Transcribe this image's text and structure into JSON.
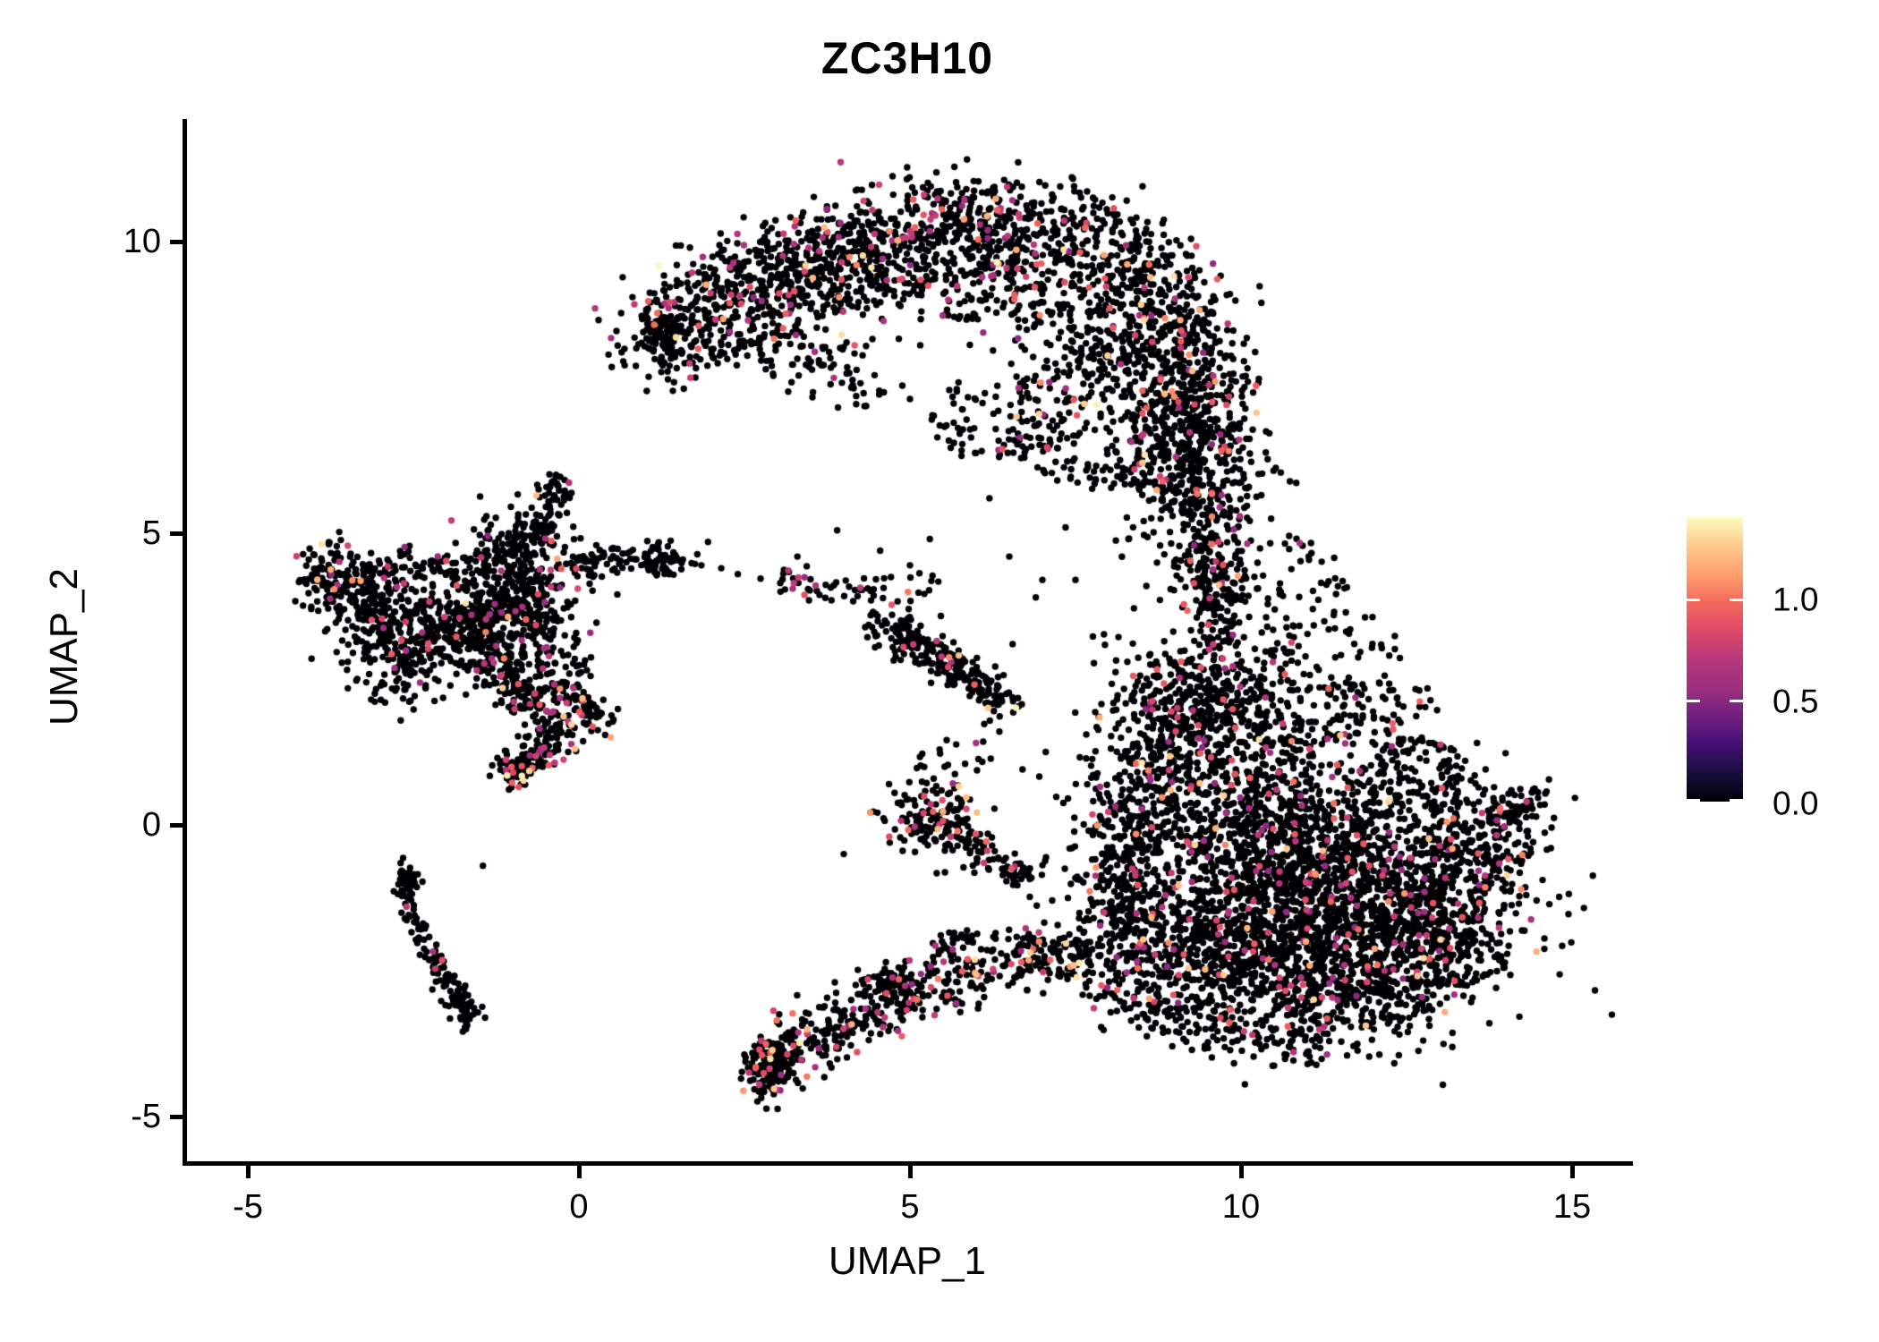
{
  "title": "ZC3H10",
  "axes": {
    "x_label": "UMAP_1",
    "y_label": "UMAP_2",
    "x_ticks": [
      "-5",
      "0",
      "5",
      "10",
      "15"
    ],
    "x_tick_values": [
      -5,
      0,
      5,
      10,
      15
    ],
    "y_ticks": [
      "10",
      "5",
      "0",
      "-5"
    ],
    "y_tick_values": [
      10,
      5,
      0,
      -5
    ]
  },
  "legend": {
    "entries": [
      {
        "label": "1.0",
        "value": 1.0
      },
      {
        "label": "0.5",
        "value": 0.5
      },
      {
        "label": "0.0",
        "value": 0.0
      }
    ],
    "vmin": 0.0,
    "vmax": 1.4
  },
  "colors": {
    "background": "#ffffff",
    "axis": "#000000",
    "point_zero": "#000004",
    "magma": [
      [
        0.0,
        "#000004"
      ],
      [
        0.1,
        "#180f3d"
      ],
      [
        0.2,
        "#440f76"
      ],
      [
        0.3,
        "#721f81"
      ],
      [
        0.4,
        "#9e2f7f"
      ],
      [
        0.5,
        "#b73779"
      ],
      [
        0.6,
        "#de4968"
      ],
      [
        0.7,
        "#f4695c"
      ],
      [
        0.8,
        "#fe9f6d"
      ],
      [
        0.9,
        "#feca8d"
      ],
      [
        1.0,
        "#fcfdbf"
      ]
    ]
  },
  "chart_data": {
    "type": "scatter",
    "title": "ZC3H10",
    "xlabel": "UMAP_1",
    "ylabel": "UMAP_2",
    "xlim": [
      -5.9,
      15.9
    ],
    "ylim": [
      -5.8,
      12.1
    ],
    "grid": false,
    "legend_position": "right",
    "colormap": "magma",
    "color_range": [
      0.0,
      1.4
    ],
    "point_radius_px": 3.7,
    "clusters": [
      {
        "id": "top-arc-band",
        "type": "path",
        "pts": [
          [
            1.1,
            8.35
          ],
          [
            1.9,
            9.0
          ],
          [
            2.9,
            9.5
          ],
          [
            4.0,
            9.95
          ],
          [
            5.1,
            10.25
          ],
          [
            6.2,
            10.35
          ],
          [
            7.3,
            10.15
          ],
          [
            8.2,
            9.75
          ],
          [
            8.9,
            9.15
          ],
          [
            9.3,
            8.3
          ],
          [
            9.45,
            7.4
          ],
          [
            9.45,
            6.4
          ],
          [
            9.4,
            5.7
          ]
        ],
        "w": 0.45,
        "n": 1600,
        "p": 0.09
      },
      {
        "id": "top-arc-inner",
        "type": "path",
        "pts": [
          [
            2.3,
            8.6
          ],
          [
            3.3,
            9.1
          ],
          [
            4.4,
            9.45
          ],
          [
            5.5,
            9.55
          ],
          [
            6.6,
            9.3
          ],
          [
            7.5,
            8.9
          ],
          [
            8.3,
            8.3
          ],
          [
            8.8,
            7.6
          ]
        ],
        "w": 0.5,
        "n": 700,
        "p": 0.09
      },
      {
        "id": "top-right-fill",
        "type": "spray",
        "cx": 8.0,
        "cy": 7.0,
        "rx": 1.5,
        "ry": 1.3,
        "n": 240,
        "p": 0.07
      },
      {
        "id": "top-right-col",
        "type": "blob",
        "cx": 8.8,
        "cy": 6.4,
        "sx": 0.5,
        "sy": 0.8,
        "n": 150,
        "p": 0.07
      },
      {
        "id": "top-left-fringe",
        "type": "path",
        "pts": [
          [
            1.3,
            8.05
          ],
          [
            2.1,
            8.3
          ],
          [
            2.9,
            8.15
          ],
          [
            3.7,
            7.85
          ],
          [
            4.5,
            7.5
          ]
        ],
        "w": 0.28,
        "n": 120,
        "p": 0.05
      },
      {
        "id": "top-left-tip",
        "type": "blob",
        "cx": 1.25,
        "cy": 8.4,
        "sx": 0.18,
        "sy": 0.2,
        "n": 70,
        "p": 0.1
      },
      {
        "id": "top-mid-under",
        "type": "spray",
        "cx": 6.3,
        "cy": 7.0,
        "rx": 1.0,
        "ry": 0.8,
        "n": 80,
        "p": 0.05
      },
      {
        "id": "neck-top",
        "type": "blob",
        "cx": 9.55,
        "cy": 5.4,
        "sx": 0.4,
        "sy": 0.5,
        "n": 120,
        "p": 0.06
      },
      {
        "id": "neck-column",
        "type": "path",
        "pts": [
          [
            9.45,
            4.9
          ],
          [
            9.55,
            4.1
          ],
          [
            9.8,
            3.3
          ]
        ],
        "w": 0.3,
        "n": 190,
        "p": 0.06
      },
      {
        "id": "neck-spray-1",
        "type": "spray",
        "cx": 10.5,
        "cy": 4.1,
        "rx": 1.1,
        "ry": 0.9,
        "n": 65,
        "p": 0.05
      },
      {
        "id": "neck-spray-2",
        "type": "spray",
        "cx": 11.4,
        "cy": 3.0,
        "rx": 1.0,
        "ry": 0.8,
        "n": 45,
        "p": 0.05
      },
      {
        "id": "mass-top",
        "type": "blob",
        "cx": 9.6,
        "cy": 2.4,
        "sx": 0.6,
        "sy": 0.45,
        "n": 180,
        "p": 0.07
      },
      {
        "id": "mass-nw",
        "type": "blob",
        "cx": 9.0,
        "cy": 1.3,
        "sx": 0.7,
        "sy": 0.95,
        "n": 430,
        "p": 0.07
      },
      {
        "id": "mass-n",
        "type": "blob",
        "cx": 10.3,
        "cy": 0.3,
        "sx": 0.95,
        "sy": 1.1,
        "n": 650,
        "p": 0.07
      },
      {
        "id": "mass-core",
        "type": "blob",
        "cx": 11.5,
        "cy": -0.9,
        "sx": 1.15,
        "sy": 1.0,
        "n": 850,
        "p": 0.07
      },
      {
        "id": "mass-se",
        "type": "blob",
        "cx": 12.6,
        "cy": -1.6,
        "sx": 0.85,
        "sy": 0.8,
        "n": 550,
        "p": 0.07
      },
      {
        "id": "mass-s",
        "type": "blob",
        "cx": 10.5,
        "cy": -1.9,
        "sx": 0.85,
        "sy": 0.8,
        "n": 500,
        "p": 0.07
      },
      {
        "id": "mass-sw",
        "type": "blob",
        "cx": 9.4,
        "cy": -2.3,
        "sx": 0.65,
        "sy": 0.6,
        "n": 300,
        "p": 0.07
      },
      {
        "id": "mass-w",
        "type": "blob",
        "cx": 8.3,
        "cy": -1.6,
        "sx": 0.45,
        "sy": 0.65,
        "n": 170,
        "p": 0.06
      },
      {
        "id": "mass-s-edge",
        "type": "blob",
        "cx": 11.7,
        "cy": -2.9,
        "sx": 0.85,
        "sy": 0.5,
        "n": 300,
        "p": 0.07
      },
      {
        "id": "mass-e",
        "type": "blob",
        "cx": 13.5,
        "cy": -0.4,
        "sx": 0.55,
        "sy": 0.6,
        "n": 230,
        "p": 0.06
      },
      {
        "id": "mass-e-tip",
        "type": "path",
        "pts": [
          [
            13.9,
            0.1
          ],
          [
            14.45,
            0.45
          ]
        ],
        "w": 0.16,
        "n": 60,
        "p": 0.05
      },
      {
        "id": "mass-w-edge",
        "type": "blob",
        "cx": 8.25,
        "cy": -0.4,
        "sx": 0.4,
        "sy": 0.8,
        "n": 200,
        "p": 0.06
      },
      {
        "id": "mass-ne-fringe",
        "type": "spray",
        "cx": 11.4,
        "cy": 1.9,
        "rx": 1.7,
        "ry": 0.7,
        "n": 110,
        "p": 0.06
      },
      {
        "id": "mass-e-fringe",
        "type": "spray",
        "cx": 12.7,
        "cy": 0.9,
        "rx": 0.9,
        "ry": 0.6,
        "n": 80,
        "p": 0.06
      },
      {
        "id": "mass-bottom-edge",
        "type": "path",
        "pts": [
          [
            7.6,
            -2.4
          ],
          [
            8.4,
            -3.0
          ],
          [
            9.4,
            -3.45
          ],
          [
            10.4,
            -3.75
          ],
          [
            11.3,
            -3.55
          ]
        ],
        "w": 0.28,
        "n": 170,
        "p": 0.08
      },
      {
        "id": "mass-se-fringe",
        "type": "spray",
        "cx": 13.3,
        "cy": -2.3,
        "rx": 0.75,
        "ry": 0.5,
        "n": 70,
        "p": 0.06
      },
      {
        "id": "left-tip",
        "type": "blob",
        "cx": -3.85,
        "cy": 4.3,
        "sx": 0.22,
        "sy": 0.28,
        "n": 80,
        "p": 0.1
      },
      {
        "id": "left-lobe",
        "type": "blob",
        "cx": -3.25,
        "cy": 3.85,
        "sx": 0.35,
        "sy": 0.4,
        "n": 150,
        "p": 0.08
      },
      {
        "id": "left-lobe-low",
        "type": "blob",
        "cx": -2.65,
        "cy": 3.1,
        "sx": 0.38,
        "sy": 0.5,
        "n": 260,
        "p": 0.05
      },
      {
        "id": "left-bridge",
        "type": "path",
        "pts": [
          [
            -3.4,
            4.35
          ],
          [
            -2.6,
            4.5
          ],
          [
            -1.9,
            4.45
          ]
        ],
        "w": 0.13,
        "n": 50,
        "p": 0.05
      },
      {
        "id": "left-central",
        "type": "blob",
        "cx": -0.95,
        "cy": 3.9,
        "sx": 0.5,
        "sy": 0.6,
        "n": 430,
        "p": 0.05
      },
      {
        "id": "left-central-2",
        "type": "blob",
        "cx": -1.7,
        "cy": 3.4,
        "sx": 0.4,
        "sy": 0.45,
        "n": 220,
        "p": 0.05
      },
      {
        "id": "left-spur-up",
        "type": "path",
        "pts": [
          [
            -0.6,
            4.85
          ],
          [
            -0.45,
            5.4
          ],
          [
            -0.3,
            5.9
          ]
        ],
        "w": 0.13,
        "n": 70,
        "p": 0.04
      },
      {
        "id": "left-spur-diag",
        "type": "path",
        "pts": [
          [
            -1.25,
            4.6
          ],
          [
            -0.8,
            5.15
          ]
        ],
        "w": 0.12,
        "n": 40,
        "p": 0.04
      },
      {
        "id": "left-arm-right",
        "type": "path",
        "pts": [
          [
            -0.15,
            4.45
          ],
          [
            0.7,
            4.55
          ],
          [
            1.55,
            4.45
          ]
        ],
        "w": 0.14,
        "n": 90,
        "p": 0.05
      },
      {
        "id": "left-arm-clump",
        "type": "blob",
        "cx": 1.3,
        "cy": 4.5,
        "sx": 0.18,
        "sy": 0.12,
        "n": 30,
        "p": 0.05
      },
      {
        "id": "left-tail",
        "type": "path",
        "pts": [
          [
            -1.3,
            2.9
          ],
          [
            -0.9,
            2.3
          ],
          [
            -0.45,
            1.9
          ],
          [
            -0.35,
            1.55
          ],
          [
            -0.6,
            1.25
          ],
          [
            -0.95,
            0.95
          ]
        ],
        "w": 0.18,
        "n": 230,
        "p": 0.14
      },
      {
        "id": "left-tail-branch",
        "type": "path",
        "pts": [
          [
            -0.4,
            2.45
          ],
          [
            0.15,
            2.0
          ],
          [
            0.45,
            1.7
          ]
        ],
        "w": 0.15,
        "n": 80,
        "p": 0.1
      },
      {
        "id": "left-midfill",
        "type": "spray",
        "cx": -0.7,
        "cy": 2.8,
        "rx": 1.0,
        "ry": 0.55,
        "n": 100,
        "p": 0.09
      },
      {
        "id": "left-tail-tip",
        "type": "blob",
        "cx": -1.0,
        "cy": 0.95,
        "sx": 0.16,
        "sy": 0.18,
        "n": 55,
        "p": 0.2
      },
      {
        "id": "check-line",
        "type": "path",
        "pts": [
          [
            -2.57,
            -0.75
          ],
          [
            -2.6,
            -1.3
          ],
          [
            -2.42,
            -1.8
          ],
          [
            -2.15,
            -2.3
          ],
          [
            -1.95,
            -2.65
          ],
          [
            -1.75,
            -3.1
          ]
        ],
        "w": 0.09,
        "n": 110,
        "p": 0.04
      },
      {
        "id": "check-foot",
        "type": "blob",
        "cx": -1.72,
        "cy": -3.25,
        "sx": 0.12,
        "sy": 0.15,
        "n": 35,
        "p": 0.06
      },
      {
        "id": "check-head",
        "type": "blob",
        "cx": -2.56,
        "cy": -0.95,
        "sx": 0.08,
        "sy": 0.18,
        "n": 30,
        "p": 0.03
      },
      {
        "id": "center-arm",
        "type": "path",
        "pts": [
          [
            2.95,
            4.25
          ],
          [
            3.6,
            4.05
          ],
          [
            4.25,
            3.95
          ]
        ],
        "w": 0.12,
        "n": 40,
        "p": 0.07
      },
      {
        "id": "center-streak",
        "type": "path",
        "pts": [
          [
            4.55,
            3.5
          ],
          [
            5.05,
            3.15
          ],
          [
            5.55,
            2.8
          ],
          [
            6.05,
            2.4
          ],
          [
            6.45,
            2.0
          ]
        ],
        "w": 0.17,
        "n": 250,
        "p": 0.04
      },
      {
        "id": "center-fringe",
        "type": "spray",
        "cx": 4.9,
        "cy": 4.0,
        "rx": 0.8,
        "ry": 0.35,
        "n": 22,
        "p": 0.04
      },
      {
        "id": "mid-blob",
        "type": "blob",
        "cx": 5.35,
        "cy": 0.15,
        "sx": 0.33,
        "sy": 0.3,
        "n": 150,
        "p": 0.13
      },
      {
        "id": "mid-blob-arm",
        "type": "path",
        "pts": [
          [
            5.7,
            -0.15
          ],
          [
            6.3,
            -0.55
          ],
          [
            6.85,
            -0.9
          ]
        ],
        "w": 0.16,
        "n": 80,
        "p": 0.08
      },
      {
        "id": "mid-blob-fringe",
        "type": "spray",
        "cx": 5.7,
        "cy": 1.1,
        "rx": 0.6,
        "ry": 0.55,
        "n": 22,
        "p": 0.05
      },
      {
        "id": "bottom-knot",
        "type": "blob",
        "cx": 2.95,
        "cy": -4.05,
        "sx": 0.22,
        "sy": 0.28,
        "n": 150,
        "p": 0.15
      },
      {
        "id": "bottom-knot-tip",
        "type": "path",
        "pts": [
          [
            2.7,
            -4.45
          ],
          [
            3.1,
            -3.9
          ]
        ],
        "w": 0.1,
        "n": 35,
        "p": 0.2
      },
      {
        "id": "bottom-arm",
        "type": "path",
        "pts": [
          [
            3.2,
            -3.8
          ],
          [
            4.0,
            -3.35
          ],
          [
            4.9,
            -2.95
          ],
          [
            5.8,
            -2.6
          ],
          [
            6.6,
            -2.25
          ],
          [
            7.4,
            -2.05
          ]
        ],
        "w": 0.3,
        "n": 420,
        "p": 0.11
      },
      {
        "id": "bottom-arm-spur-1",
        "type": "path",
        "pts": [
          [
            4.35,
            -2.85
          ],
          [
            4.85,
            -2.5
          ]
        ],
        "w": 0.12,
        "n": 35,
        "p": 0.08
      },
      {
        "id": "bottom-arm-spur-2",
        "type": "path",
        "pts": [
          [
            5.45,
            -2.15
          ],
          [
            5.9,
            -1.9
          ]
        ],
        "w": 0.1,
        "n": 25,
        "p": 0.08
      },
      {
        "id": "bottom-arm-join",
        "type": "spray",
        "cx": 7.2,
        "cy": -2.3,
        "rx": 0.6,
        "ry": 0.4,
        "n": 40,
        "p": 0.07
      },
      {
        "id": "strays",
        "type": "points",
        "pts": [
          [
            6.5,
            4.6
          ],
          [
            6.9,
            3.9
          ],
          [
            7.35,
            5.1
          ],
          [
            6.2,
            5.6
          ],
          [
            1.95,
            4.85
          ],
          [
            2.4,
            4.3
          ],
          [
            6.7,
            0.95
          ],
          [
            6.35,
            1.6
          ],
          [
            7.05,
            1.25
          ],
          [
            4.55,
            4.7
          ],
          [
            5.0,
            4.45
          ],
          [
            3.9,
            5.05
          ],
          [
            1.85,
            4.45
          ],
          [
            2.15,
            4.4
          ],
          [
            -1.45,
            -0.7
          ],
          [
            4.0,
            -0.5
          ],
          [
            6.55,
            3.1
          ],
          [
            7.5,
            4.2
          ],
          [
            8.3,
            4.9
          ],
          [
            4.3,
            7.4
          ],
          [
            5.0,
            7.3
          ],
          [
            3.3,
            4.6
          ],
          [
            7.0,
            4.2
          ],
          [
            5.3,
            4.9
          ]
        ],
        "p": 0
      }
    ]
  }
}
